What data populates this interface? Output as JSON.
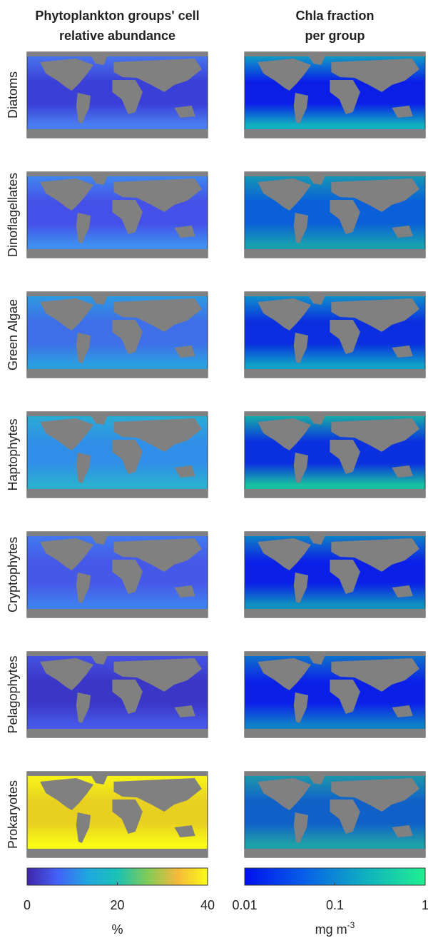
{
  "columns": [
    {
      "title": [
        "Phytoplankton groups' cell",
        "relative abundance"
      ],
      "colorbar": {
        "scale": "linear",
        "lim": [
          0,
          40
        ],
        "ticks": [
          0,
          20,
          40
        ],
        "unit": "%",
        "colors": [
          "#3e26a8",
          "#4361f8",
          "#1fa6e0",
          "#19c2b4",
          "#80cb58",
          "#f5b93b",
          "#f9fb15"
        ]
      }
    },
    {
      "title": [
        "Chla fraction",
        "per group"
      ],
      "colorbar": {
        "scale": "log",
        "lim": [
          0.01,
          1
        ],
        "ticks": [
          0.01,
          0.1,
          1
        ],
        "unit": "mg m",
        "unit_sup": "-3",
        "colors": [
          "#0010f0",
          "#0860e8",
          "#10b0c0",
          "#20f090"
        ]
      }
    }
  ],
  "rows": [
    "Diatoms",
    "Dinoflagellates",
    "Green Algae",
    "Haptophytes",
    "Cryptophytes",
    "Pelagophytes",
    "Prokaryotes"
  ]
}
